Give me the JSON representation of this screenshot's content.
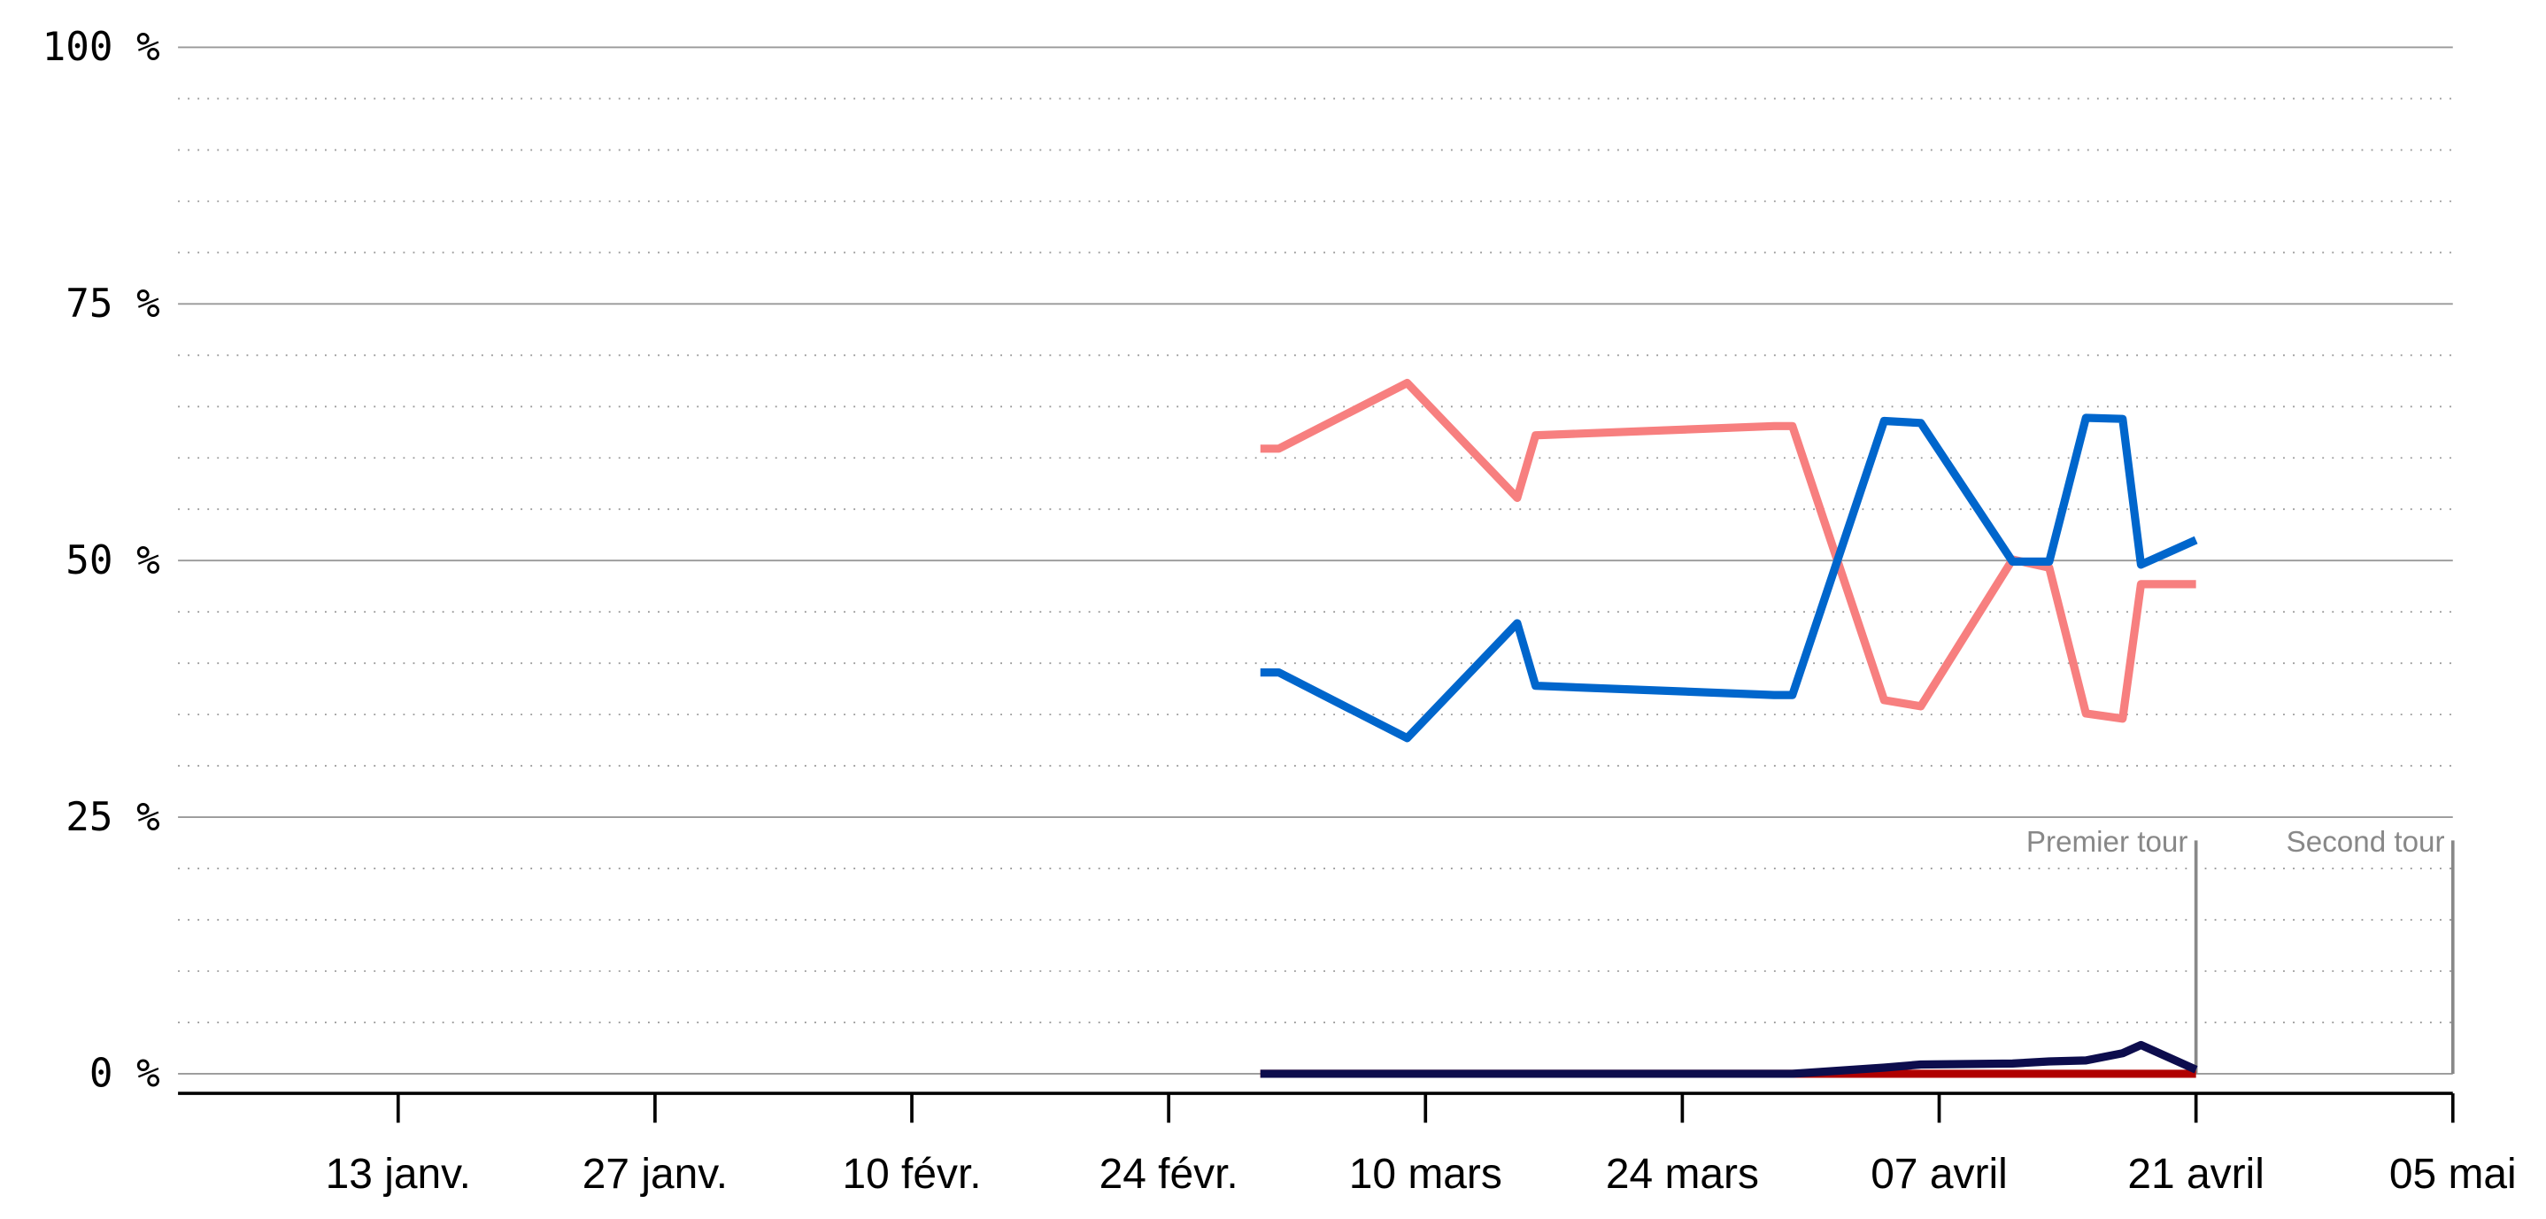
{
  "chart_data": {
    "type": "line",
    "x": [
      59,
      60,
      67,
      73,
      74,
      87,
      88,
      93,
      95,
      100,
      102,
      104,
      106,
      107,
      110
    ],
    "series": [
      {
        "color": "#f77f7f",
        "values": [
          60.9,
          60.9,
          67.3,
          56.1,
          62.2,
          63.1,
          63.1,
          36.4,
          35.8,
          50.1,
          49.3,
          35.1,
          34.6,
          47.7,
          47.7
        ]
      },
      {
        "color": "#0066cc",
        "values": [
          39.1,
          39.1,
          32.7,
          43.9,
          37.8,
          36.9,
          36.9,
          63.6,
          63.4,
          49.9,
          49.9,
          63.9,
          63.8,
          49.6,
          52.0
        ]
      },
      {
        "color": "#b00000",
        "values": [
          0,
          0,
          0,
          0,
          0,
          0,
          0,
          0,
          0,
          0,
          0,
          0,
          0,
          0,
          0
        ]
      },
      {
        "color": "#0d0d4d",
        "values": [
          0,
          0,
          0,
          0,
          0,
          0,
          0,
          0.6,
          0.9,
          1.0,
          1.2,
          1.3,
          2.0,
          2.8,
          0.4
        ]
      }
    ],
    "xlim": [
      0,
      124
    ],
    "xticks": [
      {
        "value": 12,
        "label": "13 janv."
      },
      {
        "value": 26,
        "label": "27 janv."
      },
      {
        "value": 40,
        "label": "10 févr."
      },
      {
        "value": 54,
        "label": "24 févr."
      },
      {
        "value": 68,
        "label": "10 mars"
      },
      {
        "value": 82,
        "label": "24 mars"
      },
      {
        "value": 96,
        "label": "07 avril"
      },
      {
        "value": 110,
        "label": "21 avril"
      },
      {
        "value": 124,
        "label": "05 mai"
      }
    ],
    "ylim": [
      0,
      100
    ],
    "yticks": [
      {
        "value": 0,
        "label": "0 %"
      },
      {
        "value": 25,
        "label": "25 %"
      },
      {
        "value": 50,
        "label": "50 %"
      },
      {
        "value": 75,
        "label": "75 %"
      },
      {
        "value": 100,
        "label": "100 %"
      }
    ],
    "y_minor_gridlines": [
      5,
      10,
      15,
      20,
      30,
      35,
      40,
      45,
      55,
      60,
      65,
      70,
      80,
      85,
      90,
      95
    ],
    "grid": true,
    "annotations": [
      {
        "x": 110,
        "label": "Premier tour"
      },
      {
        "x": 124,
        "label": "Second tour"
      }
    ]
  }
}
